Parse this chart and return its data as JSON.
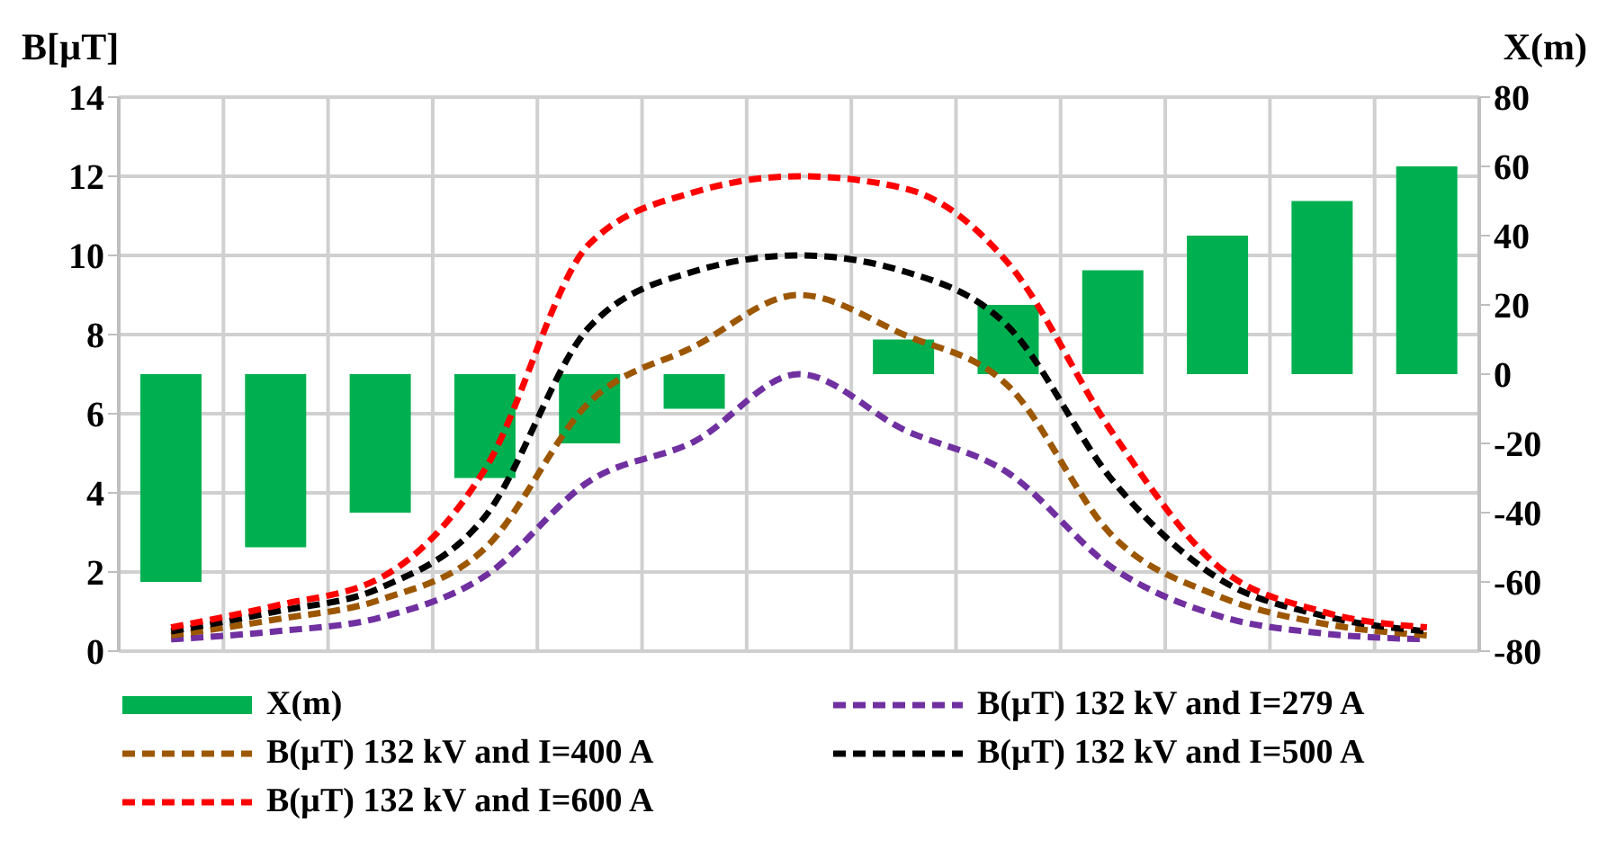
{
  "chart_data": {
    "type": "line",
    "ylabel": "B[µT]",
    "y2label": "X(m)",
    "categories": [
      null,
      null,
      null,
      null,
      null,
      null,
      null,
      null,
      null,
      null,
      null,
      null,
      null
    ],
    "ylim": [
      0,
      14
    ],
    "yticks": [
      0,
      2,
      4,
      6,
      8,
      10,
      12,
      14
    ],
    "y2lim": [
      -80,
      80
    ],
    "y2ticks": [
      -80,
      -60,
      -40,
      -20,
      0,
      20,
      40,
      60,
      80
    ],
    "grid": true,
    "legend": "bottom",
    "line_style": "dashed",
    "marker": "none",
    "series": [
      {
        "name": "X(m)",
        "type": "bar",
        "axis": "y2",
        "color": "#00b050",
        "values": [
          -60,
          -50,
          -40,
          -30,
          -20,
          -10,
          0,
          10,
          20,
          30,
          40,
          50,
          60
        ]
      },
      {
        "name": "B(µT) 132 kV and I=279 A",
        "color": "#7030a0",
        "values": [
          0.3,
          0.5,
          0.85,
          1.9,
          4.3,
          5.3,
          7.0,
          5.6,
          4.5,
          2.1,
          0.9,
          0.45,
          0.3
        ]
      },
      {
        "name": "B(µT) 132 kV and I=400 A",
        "color": "#9c5700",
        "values": [
          0.4,
          0.8,
          1.3,
          2.6,
          6.3,
          7.7,
          9.0,
          8.0,
          6.7,
          2.9,
          1.4,
          0.7,
          0.4
        ]
      },
      {
        "name": "B(µT) 132 kV and I=500 A",
        "color": "#000000",
        "values": [
          0.5,
          1.0,
          1.6,
          3.4,
          8.2,
          9.6,
          10.0,
          9.6,
          8.2,
          4.3,
          1.85,
          0.9,
          0.5
        ]
      },
      {
        "name": "B(µT) 132 kV and I=600 A",
        "color": "#ff0000",
        "values": [
          0.6,
          1.15,
          1.85,
          4.6,
          10.3,
          11.6,
          12.0,
          11.7,
          9.8,
          5.5,
          2.15,
          1.0,
          0.6
        ]
      }
    ]
  }
}
